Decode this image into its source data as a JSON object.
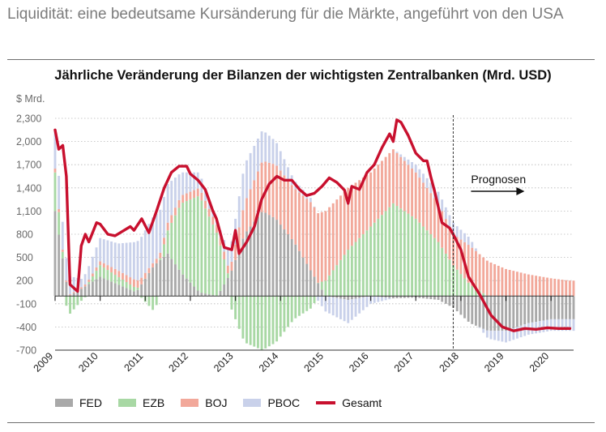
{
  "headline": "Liquidität: eine bedeutsame Kursänderung für die Märkte, angeführt von den USA",
  "colors": {
    "FED": "#a9a9a9",
    "EZB": "#a8d8a4",
    "BOJ": "#f2a89a",
    "PBOC": "#c9d1ea",
    "Gesamt": "#c8102e",
    "grid": "#b8b8b8"
  },
  "chart_data": {
    "type": "bar",
    "title": "Jährliche Veränderung der Bilanzen der wichtigsten Zentralbanken (Mrd. USD)",
    "ylabel": "$ Mrd.",
    "ylim": [
      -700,
      2300
    ],
    "yticks": [
      2300,
      2000,
      1700,
      1400,
      1100,
      800,
      500,
      200,
      -100,
      -400,
      -700
    ],
    "ytick_labels": [
      "2,300",
      "2,000",
      "1,700",
      "1,400",
      "1,100",
      "800",
      "500",
      "200",
      "-100",
      "-400",
      "-700"
    ],
    "xlim": [
      2009.0,
      2020.5
    ],
    "xticks": [
      "2009",
      "2010",
      "2011",
      "2012",
      "2013",
      "2014",
      "2015",
      "2016",
      "2017",
      "2018",
      "2019",
      "2020"
    ],
    "stacked": true,
    "forecast_start": 2017.83,
    "forecast_label": "Prognosen",
    "legend": [
      "FED",
      "EZB",
      "BOJ",
      "PBOC",
      "Gesamt"
    ],
    "legend_position": "bottom",
    "series": [
      {
        "name": "FED",
        "kind": "bar",
        "points": [
          [
            2009.0,
            1100
          ],
          [
            2009.3,
            0
          ],
          [
            2009.6,
            100
          ],
          [
            2010.0,
            250
          ],
          [
            2010.4,
            150
          ],
          [
            2010.8,
            50
          ],
          [
            2011.2,
            400
          ],
          [
            2011.5,
            550
          ],
          [
            2011.8,
            300
          ],
          [
            2012.2,
            50
          ],
          [
            2012.6,
            0
          ],
          [
            2012.9,
            300
          ],
          [
            2013.2,
            800
          ],
          [
            2013.6,
            1100
          ],
          [
            2013.9,
            1000
          ],
          [
            2014.3,
            700
          ],
          [
            2014.7,
            300
          ],
          [
            2015.0,
            0
          ],
          [
            2015.5,
            -50
          ],
          [
            2016.0,
            0
          ],
          [
            2016.5,
            -30
          ],
          [
            2017.0,
            -20
          ],
          [
            2017.5,
            -50
          ],
          [
            2017.83,
            -150
          ],
          [
            2018.2,
            -350
          ],
          [
            2018.6,
            -450
          ],
          [
            2019.0,
            -450
          ],
          [
            2019.5,
            -350
          ],
          [
            2020.0,
            -300
          ],
          [
            2020.4,
            -300
          ]
        ]
      },
      {
        "name": "EZB",
        "kind": "bar",
        "points": [
          [
            2009.0,
            500
          ],
          [
            2009.3,
            -250
          ],
          [
            2009.6,
            -50
          ],
          [
            2010.0,
            150
          ],
          [
            2010.4,
            100
          ],
          [
            2010.8,
            50
          ],
          [
            2011.2,
            -200
          ],
          [
            2011.5,
            300
          ],
          [
            2011.8,
            900
          ],
          [
            2012.2,
            1250
          ],
          [
            2012.6,
            800
          ],
          [
            2012.9,
            -150
          ],
          [
            2013.2,
            -600
          ],
          [
            2013.6,
            -700
          ],
          [
            2013.9,
            -600
          ],
          [
            2014.3,
            -300
          ],
          [
            2014.7,
            -150
          ],
          [
            2015.0,
            200
          ],
          [
            2015.5,
            600
          ],
          [
            2016.0,
            900
          ],
          [
            2016.5,
            1200
          ],
          [
            2017.0,
            1000
          ],
          [
            2017.5,
            700
          ],
          [
            2017.83,
            400
          ],
          [
            2018.2,
            150
          ],
          [
            2018.6,
            0
          ],
          [
            2019.0,
            0
          ],
          [
            2019.5,
            0
          ],
          [
            2020.0,
            0
          ],
          [
            2020.4,
            0
          ]
        ]
      },
      {
        "name": "BOJ",
        "kind": "bar",
        "points": [
          [
            2009.0,
            50
          ],
          [
            2009.3,
            10
          ],
          [
            2009.6,
            20
          ],
          [
            2010.0,
            50
          ],
          [
            2010.4,
            80
          ],
          [
            2010.8,
            100
          ],
          [
            2011.2,
            50
          ],
          [
            2011.5,
            100
          ],
          [
            2011.8,
            100
          ],
          [
            2012.2,
            100
          ],
          [
            2012.6,
            100
          ],
          [
            2012.9,
            100
          ],
          [
            2013.2,
            400
          ],
          [
            2013.6,
            650
          ],
          [
            2013.9,
            700
          ],
          [
            2014.3,
            700
          ],
          [
            2014.7,
            900
          ],
          [
            2015.0,
            900
          ],
          [
            2015.5,
            800
          ],
          [
            2016.0,
            700
          ],
          [
            2016.5,
            700
          ],
          [
            2017.0,
            600
          ],
          [
            2017.5,
            500
          ],
          [
            2017.83,
            400
          ],
          [
            2018.2,
            500
          ],
          [
            2018.6,
            450
          ],
          [
            2019.0,
            350
          ],
          [
            2019.5,
            280
          ],
          [
            2020.0,
            230
          ],
          [
            2020.4,
            200
          ]
        ]
      },
      {
        "name": "PBOC",
        "kind": "bar",
        "points": [
          [
            2009.0,
            500
          ],
          [
            2009.3,
            250
          ],
          [
            2009.6,
            100
          ],
          [
            2010.0,
            300
          ],
          [
            2010.4,
            350
          ],
          [
            2010.8,
            500
          ],
          [
            2011.2,
            600
          ],
          [
            2011.5,
            500
          ],
          [
            2011.8,
            300
          ],
          [
            2012.2,
            200
          ],
          [
            2012.6,
            50
          ],
          [
            2012.9,
            250
          ],
          [
            2013.2,
            500
          ],
          [
            2013.6,
            400
          ],
          [
            2013.9,
            300
          ],
          [
            2014.3,
            100
          ],
          [
            2014.7,
            50
          ],
          [
            2015.0,
            -200
          ],
          [
            2015.5,
            -300
          ],
          [
            2016.0,
            -100
          ],
          [
            2016.5,
            0
          ],
          [
            2017.0,
            100
          ],
          [
            2017.5,
            150
          ],
          [
            2017.83,
            150
          ],
          [
            2018.2,
            100
          ],
          [
            2018.6,
            -100
          ],
          [
            2019.0,
            -150
          ],
          [
            2019.5,
            -150
          ],
          [
            2020.0,
            -150
          ],
          [
            2020.4,
            -150
          ]
        ]
      },
      {
        "name": "Gesamt",
        "kind": "line",
        "points": [
          [
            2009.0,
            2150
          ],
          [
            2009.08,
            1900
          ],
          [
            2009.17,
            1950
          ],
          [
            2009.25,
            1550
          ],
          [
            2009.33,
            150
          ],
          [
            2009.5,
            60
          ],
          [
            2009.58,
            650
          ],
          [
            2009.67,
            800
          ],
          [
            2009.75,
            700
          ],
          [
            2009.92,
            950
          ],
          [
            2010.0,
            930
          ],
          [
            2010.17,
            800
          ],
          [
            2010.33,
            780
          ],
          [
            2010.5,
            840
          ],
          [
            2010.67,
            900
          ],
          [
            2010.75,
            850
          ],
          [
            2010.92,
            1000
          ],
          [
            2011.08,
            820
          ],
          [
            2011.25,
            1100
          ],
          [
            2011.42,
            1400
          ],
          [
            2011.58,
            1600
          ],
          [
            2011.75,
            1680
          ],
          [
            2011.92,
            1680
          ],
          [
            2012.0,
            1580
          ],
          [
            2012.17,
            1500
          ],
          [
            2012.33,
            1380
          ],
          [
            2012.5,
            1100
          ],
          [
            2012.58,
            1000
          ],
          [
            2012.75,
            630
          ],
          [
            2012.92,
            600
          ],
          [
            2013.0,
            850
          ],
          [
            2013.08,
            550
          ],
          [
            2013.25,
            700
          ],
          [
            2013.42,
            900
          ],
          [
            2013.58,
            1250
          ],
          [
            2013.75,
            1450
          ],
          [
            2013.92,
            1550
          ],
          [
            2014.08,
            1500
          ],
          [
            2014.25,
            1500
          ],
          [
            2014.42,
            1380
          ],
          [
            2014.58,
            1300
          ],
          [
            2014.75,
            1330
          ],
          [
            2014.92,
            1420
          ],
          [
            2015.08,
            1530
          ],
          [
            2015.25,
            1470
          ],
          [
            2015.42,
            1370
          ],
          [
            2015.5,
            1200
          ],
          [
            2015.58,
            1420
          ],
          [
            2015.75,
            1380
          ],
          [
            2015.92,
            1600
          ],
          [
            2016.08,
            1700
          ],
          [
            2016.25,
            1920
          ],
          [
            2016.42,
            2100
          ],
          [
            2016.5,
            2000
          ],
          [
            2016.58,
            2280
          ],
          [
            2016.67,
            2250
          ],
          [
            2016.83,
            2080
          ],
          [
            2017.0,
            1850
          ],
          [
            2017.17,
            1750
          ],
          [
            2017.25,
            1750
          ],
          [
            2017.33,
            1550
          ],
          [
            2017.42,
            1350
          ],
          [
            2017.58,
            950
          ],
          [
            2017.75,
            880
          ],
          [
            2017.83,
            800
          ],
          [
            2018.0,
            600
          ],
          [
            2018.17,
            250
          ],
          [
            2018.42,
            20
          ],
          [
            2018.67,
            -250
          ],
          [
            2018.92,
            -400
          ],
          [
            2019.17,
            -450
          ],
          [
            2019.42,
            -420
          ],
          [
            2019.67,
            -430
          ],
          [
            2019.92,
            -410
          ],
          [
            2020.17,
            -420
          ],
          [
            2020.42,
            -420
          ]
        ]
      }
    ]
  },
  "cx": 0
}
